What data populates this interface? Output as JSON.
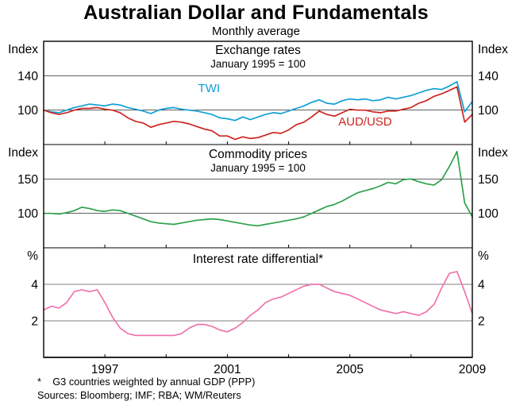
{
  "page": {
    "title": "Australian Dollar and Fundamentals",
    "subtitle": "Monthly average",
    "footnote": "*    G3 countries weighted by annual GDP (PPP)",
    "sources": "Sources: Bloomberg; IMF; RBA; WM/Reuters"
  },
  "xaxis": {
    "range": [
      1995,
      2009
    ],
    "ticks": [
      1997,
      2001,
      2005,
      2009
    ]
  },
  "chart_data": [
    {
      "type": "line",
      "title": "Exchange rates",
      "subtitle": "January 1995 = 100",
      "unit": "Index",
      "ylim": [
        60,
        180
      ],
      "yticks": [
        100,
        140
      ],
      "x": [
        1995,
        1995.25,
        1995.5,
        1995.75,
        1996,
        1996.25,
        1996.5,
        1996.75,
        1997,
        1997.25,
        1997.5,
        1997.75,
        1998,
        1998.25,
        1998.5,
        1998.75,
        1999,
        1999.25,
        1999.5,
        1999.75,
        2000,
        2000.25,
        2000.5,
        2000.75,
        2001,
        2001.25,
        2001.5,
        2001.75,
        2002,
        2002.25,
        2002.5,
        2002.75,
        2003,
        2003.25,
        2003.5,
        2003.75,
        2004,
        2004.25,
        2004.5,
        2004.75,
        2005,
        2005.25,
        2005.5,
        2005.75,
        2006,
        2006.25,
        2006.5,
        2006.75,
        2007,
        2007.25,
        2007.5,
        2007.75,
        2008,
        2008.25,
        2008.5,
        2008.75,
        2009
      ],
      "series": [
        {
          "name": "TWI",
          "color": "#0f9fd4",
          "label_pos": {
            "x": 2000.4,
            "y": 121
          },
          "values": [
            100,
            98,
            97,
            100,
            103,
            105,
            107,
            106,
            105,
            107,
            106,
            103,
            101,
            99,
            96,
            100,
            102,
            103,
            101,
            100,
            99,
            97,
            95,
            91,
            90,
            88,
            92,
            89,
            92,
            95,
            97,
            96,
            99,
            102,
            105,
            109,
            112,
            108,
            107,
            111,
            113,
            112,
            113,
            111,
            112,
            115,
            113,
            115,
            117,
            120,
            123,
            125,
            124,
            128,
            133,
            98,
            110
          ]
        },
        {
          "name": "AUD/USD",
          "color": "#cd2420",
          "label_pos": {
            "x": 2005.5,
            "y": 82
          },
          "values": [
            100,
            97,
            95,
            97,
            100,
            102,
            102,
            103,
            101,
            100,
            97,
            91,
            87,
            85,
            80,
            83,
            85,
            87,
            86,
            84,
            81,
            78,
            76,
            70,
            70,
            66,
            69,
            67,
            68,
            71,
            74,
            73,
            77,
            83,
            86,
            92,
            99,
            95,
            93,
            97,
            101,
            100,
            100,
            98,
            97,
            99,
            99,
            101,
            103,
            108,
            111,
            116,
            119,
            123,
            127,
            86,
            95
          ]
        }
      ]
    },
    {
      "type": "line",
      "title": "Commodity prices",
      "subtitle": "January 1995 = 100",
      "unit": "Index",
      "ylim": [
        50,
        200
      ],
      "yticks": [
        100,
        150
      ],
      "x": [
        1995,
        1995.25,
        1995.5,
        1995.75,
        1996,
        1996.25,
        1996.5,
        1996.75,
        1997,
        1997.25,
        1997.5,
        1997.75,
        1998,
        1998.25,
        1998.5,
        1998.75,
        1999,
        1999.25,
        1999.5,
        1999.75,
        2000,
        2000.25,
        2000.5,
        2000.75,
        2001,
        2001.25,
        2001.5,
        2001.75,
        2002,
        2002.25,
        2002.5,
        2002.75,
        2003,
        2003.25,
        2003.5,
        2003.75,
        2004,
        2004.25,
        2004.5,
        2004.75,
        2005,
        2005.25,
        2005.5,
        2005.75,
        2006,
        2006.25,
        2006.5,
        2006.75,
        2007,
        2007.25,
        2007.5,
        2007.75,
        2008,
        2008.25,
        2008.5,
        2008.75,
        2009
      ],
      "series": [
        {
          "name": "Commodity prices",
          "color": "#2da14b",
          "values": [
            100,
            100,
            99,
            101,
            104,
            109,
            107,
            104,
            103,
            105,
            104,
            100,
            96,
            92,
            88,
            86,
            85,
            84,
            86,
            88,
            90,
            91,
            92,
            91,
            89,
            87,
            85,
            83,
            82,
            84,
            86,
            88,
            90,
            92,
            95,
            100,
            105,
            110,
            113,
            118,
            124,
            130,
            133,
            136,
            140,
            145,
            143,
            149,
            150,
            146,
            143,
            141,
            149,
            168,
            190,
            115,
            95
          ]
        }
      ]
    },
    {
      "type": "line",
      "title": "Interest rate differential*",
      "subtitle": "",
      "unit": "%",
      "ylim": [
        0,
        6
      ],
      "yticks": [
        2,
        4
      ],
      "x": [
        1995,
        1995.25,
        1995.5,
        1995.75,
        1996,
        1996.25,
        1996.5,
        1996.75,
        1997,
        1997.25,
        1997.5,
        1997.75,
        1998,
        1998.25,
        1998.5,
        1998.75,
        1999,
        1999.25,
        1999.5,
        1999.75,
        2000,
        2000.25,
        2000.5,
        2000.75,
        2001,
        2001.25,
        2001.5,
        2001.75,
        2002,
        2002.25,
        2002.5,
        2002.75,
        2003,
        2003.25,
        2003.5,
        2003.75,
        2004,
        2004.25,
        2004.5,
        2004.75,
        2005,
        2005.25,
        2005.5,
        2005.75,
        2006,
        2006.25,
        2006.5,
        2006.75,
        2007,
        2007.25,
        2007.5,
        2007.75,
        2008,
        2008.25,
        2008.5,
        2008.75,
        2009
      ],
      "series": [
        {
          "name": "Interest rate differential",
          "color": "#ef74ad",
          "values": [
            2.6,
            2.8,
            2.7,
            3.0,
            3.6,
            3.7,
            3.6,
            3.7,
            3.0,
            2.2,
            1.6,
            1.3,
            1.2,
            1.2,
            1.2,
            1.2,
            1.2,
            1.2,
            1.3,
            1.6,
            1.8,
            1.8,
            1.7,
            1.5,
            1.4,
            1.6,
            1.9,
            2.3,
            2.6,
            3.0,
            3.2,
            3.3,
            3.5,
            3.7,
            3.9,
            4.0,
            4.0,
            3.8,
            3.6,
            3.5,
            3.4,
            3.2,
            3.0,
            2.8,
            2.6,
            2.5,
            2.4,
            2.5,
            2.4,
            2.3,
            2.5,
            2.9,
            3.8,
            4.6,
            4.7,
            3.6,
            2.4
          ]
        }
      ]
    }
  ]
}
